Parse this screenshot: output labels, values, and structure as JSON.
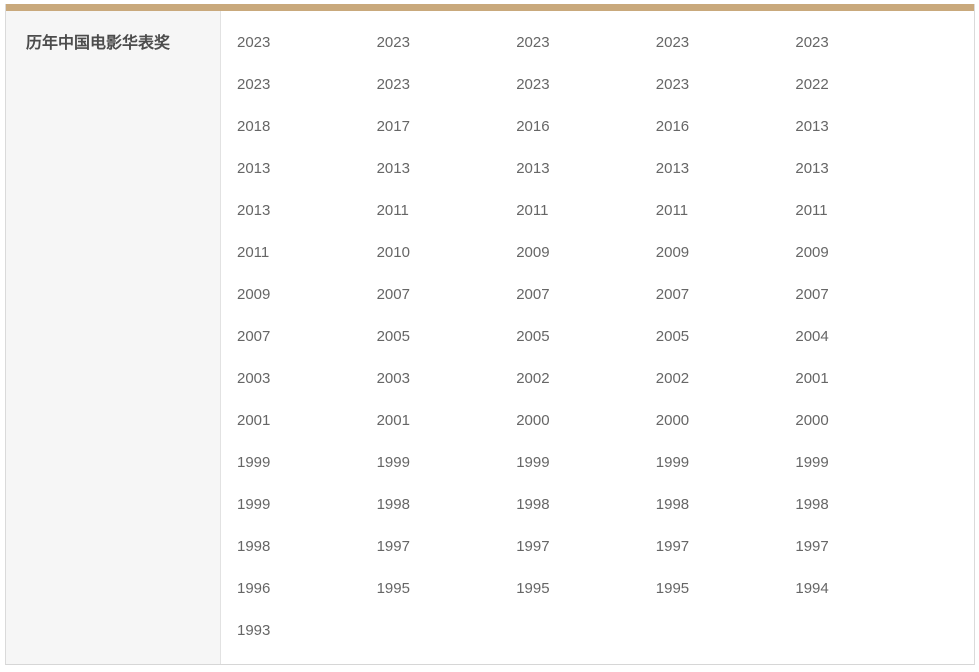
{
  "widget": {
    "title": "历年中国电影华表奖"
  },
  "colors": {
    "top_bar": "#c9a97c",
    "label_background": "#f6f6f6",
    "border": "#dadada",
    "title_text": "#4c4c4c",
    "year_text": "#666666"
  },
  "years": {
    "values": [
      "2023",
      "2023",
      "2023",
      "2023",
      "2023",
      "2023",
      "2023",
      "2023",
      "2023",
      "2022",
      "2018",
      "2017",
      "2016",
      "2016",
      "2013",
      "2013",
      "2013",
      "2013",
      "2013",
      "2013",
      "2013",
      "2011",
      "2011",
      "2011",
      "2011",
      "2011",
      "2010",
      "2009",
      "2009",
      "2009",
      "2009",
      "2007",
      "2007",
      "2007",
      "2007",
      "2007",
      "2005",
      "2005",
      "2005",
      "2004",
      "2003",
      "2003",
      "2002",
      "2002",
      "2001",
      "2001",
      "2001",
      "2000",
      "2000",
      "2000",
      "1999",
      "1999",
      "1999",
      "1999",
      "1999",
      "1999",
      "1998",
      "1998",
      "1998",
      "1998",
      "1998",
      "1997",
      "1997",
      "1997",
      "1997",
      "1996",
      "1995",
      "1995",
      "1995",
      "1994",
      "1993"
    ]
  }
}
